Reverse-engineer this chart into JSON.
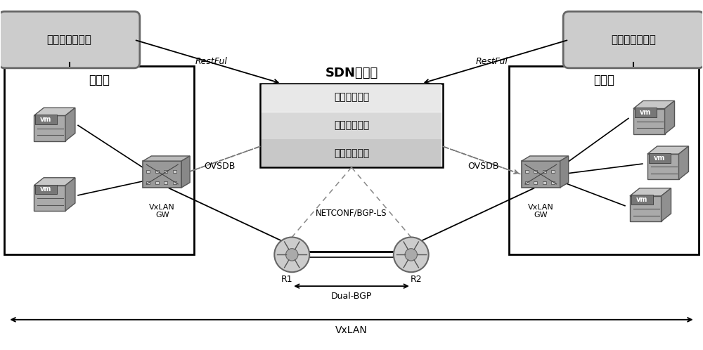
{
  "bg_color": "#ffffff",
  "private_cloud_mgmt_label": "私有云管理平台",
  "public_cloud_mgmt_label": "公有云管理平台",
  "sdn_label": "SDN控制器",
  "private_cloud_label": "私有云",
  "public_cloud_label": "公有云",
  "module1": "北向接口模块",
  "module2": "协议适配模块",
  "module3": "其他核心模块",
  "restful_left": "RestFul",
  "restful_right": "RestFul",
  "ovsdb_left": "OVSDB",
  "ovsdb_right": "OVSDB",
  "netconf": "NETCONF/BGP-LS",
  "dual_bgp": "Dual-BGP",
  "vxlan_bottom": "VxLAN",
  "vxlan_gw_left": "VxLAN\nGW",
  "vxlan_gw_right": "VxLAN\nGW",
  "r1_label": "R1",
  "r2_label": "R2",
  "vm_label": "vm",
  "font": "SimHei"
}
